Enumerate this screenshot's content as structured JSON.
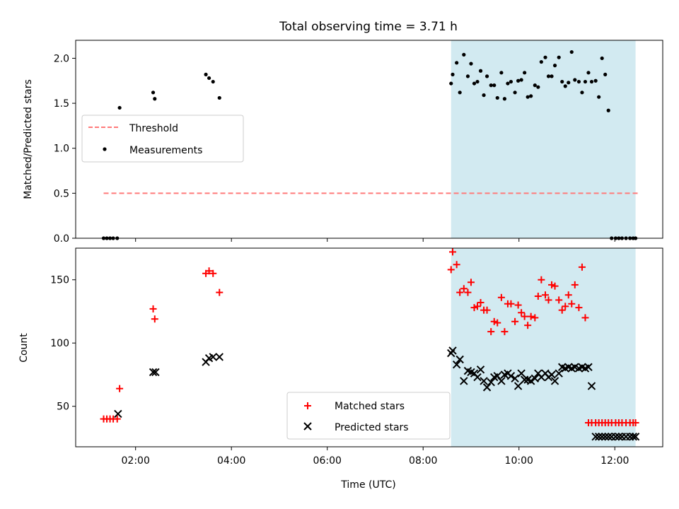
{
  "chart_data": [
    {
      "type": "scatter",
      "title": "Total observing time = 3.71 h",
      "xlabel": "",
      "ylabel": "Matched/Predicted stars",
      "xlim": [
        "00:45",
        "13:00"
      ],
      "ylim": [
        0,
        2.2
      ],
      "yticks": [
        "0.0",
        "0.5",
        "1.0",
        "1.5",
        "2.0"
      ],
      "shaded_region": [
        "08:35",
        "12:26"
      ],
      "legend": {
        "position": "center-left",
        "entries": [
          "Threshold",
          "Measurements"
        ]
      },
      "series": [
        {
          "name": "Threshold",
          "style": "dashed-line",
          "color": "#ff7a7a",
          "x": [
            "01:20",
            "12:30"
          ],
          "y": [
            0.5,
            0.5
          ]
        },
        {
          "name": "Measurements",
          "style": "dot",
          "color": "#000000",
          "x": [
            "01:20",
            "01:24",
            "01:28",
            "01:32",
            "01:37",
            "01:40",
            "02:22",
            "02:24",
            "03:28",
            "03:32",
            "03:37",
            "03:45",
            "08:35",
            "08:37",
            "08:42",
            "08:46",
            "08:51",
            "08:56",
            "09:00",
            "09:04",
            "09:08",
            "09:12",
            "09:16",
            "09:20",
            "09:25",
            "09:29",
            "09:33",
            "09:38",
            "09:42",
            "09:46",
            "09:50",
            "09:55",
            "09:59",
            "10:03",
            "10:07",
            "10:11",
            "10:15",
            "10:20",
            "10:24",
            "10:28",
            "10:33",
            "10:37",
            "10:41",
            "10:45",
            "10:50",
            "10:54",
            "10:58",
            "11:02",
            "11:06",
            "11:10",
            "11:15",
            "11:19",
            "11:23",
            "11:27",
            "11:31",
            "11:36",
            "11:40",
            "11:44",
            "11:48",
            "11:52",
            "11:56",
            "12:01",
            "12:05",
            "12:09",
            "12:14",
            "12:19",
            "12:23",
            "12:26"
          ],
          "y": [
            0.0,
            0.0,
            0.0,
            0.0,
            0.0,
            1.45,
            1.62,
            1.55,
            1.82,
            1.78,
            1.74,
            1.56,
            1.72,
            1.82,
            1.95,
            1.62,
            2.04,
            1.8,
            1.94,
            1.72,
            1.74,
            1.86,
            1.59,
            1.8,
            1.7,
            1.7,
            1.56,
            1.84,
            1.55,
            1.72,
            1.74,
            1.62,
            1.75,
            1.76,
            1.84,
            1.57,
            1.58,
            1.7,
            1.68,
            1.96,
            2.01,
            1.8,
            1.8,
            1.92,
            2.01,
            1.74,
            1.69,
            1.73,
            2.07,
            1.76,
            1.74,
            1.62,
            1.74,
            1.84,
            1.74,
            1.75,
            1.57,
            2.0,
            1.82,
            1.42,
            0.0,
            0.0,
            0.0,
            0.0,
            0.0,
            0.0,
            0.0,
            0.0
          ]
        }
      ]
    },
    {
      "type": "scatter",
      "title": "",
      "xlabel": "Time (UTC)",
      "ylabel": "Count",
      "xlim": [
        "00:45",
        "13:00"
      ],
      "ylim": [
        18,
        175
      ],
      "xticks": [
        "02:00",
        "04:00",
        "06:00",
        "08:00",
        "10:00",
        "12:00"
      ],
      "yticks": [
        "50",
        "100",
        "150"
      ],
      "shaded_region": [
        "08:35",
        "12:26"
      ],
      "legend": {
        "position": "bottom-center",
        "entries": [
          "Matched stars",
          "Predicted stars"
        ]
      },
      "series": [
        {
          "name": "Matched stars",
          "marker": "plus",
          "color": "#ff0000",
          "x": [
            "01:20",
            "01:24",
            "01:28",
            "01:32",
            "01:37",
            "01:40",
            "02:22",
            "02:24",
            "03:28",
            "03:32",
            "03:37",
            "03:45",
            "08:35",
            "08:37",
            "08:42",
            "08:46",
            "08:51",
            "08:56",
            "09:00",
            "09:04",
            "09:08",
            "09:12",
            "09:16",
            "09:20",
            "09:25",
            "09:29",
            "09:33",
            "09:38",
            "09:42",
            "09:46",
            "09:50",
            "09:55",
            "09:59",
            "10:03",
            "10:07",
            "10:11",
            "10:15",
            "10:20",
            "10:24",
            "10:28",
            "10:33",
            "10:37",
            "10:41",
            "10:45",
            "10:50",
            "10:54",
            "10:58",
            "11:02",
            "11:06",
            "11:10",
            "11:15",
            "11:19",
            "11:23",
            "11:27",
            "11:31",
            "11:36",
            "11:40",
            "11:44",
            "11:48",
            "11:52",
            "11:56",
            "12:01",
            "12:05",
            "12:09",
            "12:14",
            "12:19",
            "12:23",
            "12:26"
          ],
          "y": [
            40,
            40,
            40,
            40,
            40,
            64,
            127,
            119,
            155,
            157,
            155,
            140,
            158,
            172,
            162,
            140,
            143,
            140,
            148,
            128,
            129,
            132,
            126,
            126,
            109,
            117,
            116,
            136,
            109,
            131,
            131,
            117,
            130,
            124,
            121,
            114,
            121,
            120,
            137,
            150,
            138,
            134,
            146,
            145,
            134,
            126,
            129,
            138,
            131,
            146,
            128,
            160,
            120,
            37,
            37,
            37,
            37,
            37,
            37,
            37,
            37,
            37,
            37,
            37,
            37,
            37,
            37,
            37
          ]
        },
        {
          "name": "Predicted stars",
          "marker": "x",
          "color": "#000000",
          "x": [
            "01:38",
            "02:22",
            "02:25",
            "03:28",
            "03:32",
            "03:37",
            "03:45",
            "08:35",
            "08:37",
            "08:42",
            "08:46",
            "08:51",
            "08:56",
            "09:00",
            "09:04",
            "09:08",
            "09:12",
            "09:16",
            "09:20",
            "09:25",
            "09:29",
            "09:33",
            "09:38",
            "09:42",
            "09:46",
            "09:50",
            "09:55",
            "09:59",
            "10:03",
            "10:07",
            "10:11",
            "10:15",
            "10:20",
            "10:24",
            "10:28",
            "10:33",
            "10:37",
            "10:41",
            "10:45",
            "10:50",
            "10:54",
            "10:58",
            "11:02",
            "11:06",
            "11:10",
            "11:15",
            "11:19",
            "11:23",
            "11:27",
            "11:31",
            "11:36",
            "11:40",
            "11:44",
            "11:48",
            "11:52",
            "11:56",
            "12:01",
            "12:05",
            "12:09",
            "12:14",
            "12:19",
            "12:23",
            "12:26"
          ],
          "y": [
            44,
            77,
            77,
            85,
            88,
            89,
            89,
            92,
            94,
            83,
            87,
            70,
            78,
            77,
            76,
            73,
            79,
            70,
            65,
            69,
            73,
            74,
            70,
            75,
            76,
            74,
            72,
            66,
            76,
            71,
            71,
            70,
            72,
            76,
            73,
            76,
            73,
            75,
            70,
            76,
            81,
            80,
            81,
            80,
            81,
            80,
            81,
            80,
            81,
            66,
            26,
            26,
            26,
            26,
            26,
            26,
            26,
            26,
            26,
            26,
            26,
            26,
            26
          ]
        }
      ]
    }
  ]
}
